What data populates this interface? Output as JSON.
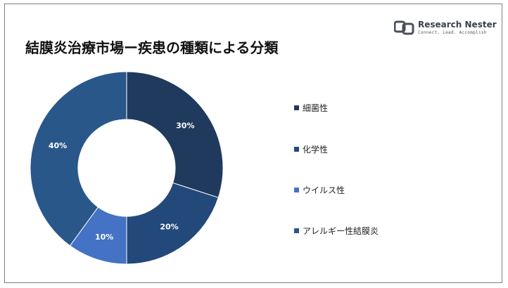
{
  "title": "結膜炎治療市場ー疾患の種類による分類",
  "logo": {
    "name": "Research Nester",
    "tagline": "Connect. Lead. Accomplish"
  },
  "chart_data": {
    "type": "pie",
    "variant": "donut",
    "categories": [
      "細菌性",
      "化学性",
      "ウイルス性",
      "アレルギー性結膜炎"
    ],
    "values": [
      30,
      20,
      10,
      40
    ],
    "data_labels": [
      "30%",
      "20%",
      "10%",
      "40%"
    ],
    "colors": [
      "#1f3a5c",
      "#22497a",
      "#4472c4",
      "#2a578a"
    ],
    "legend_position": "right"
  }
}
